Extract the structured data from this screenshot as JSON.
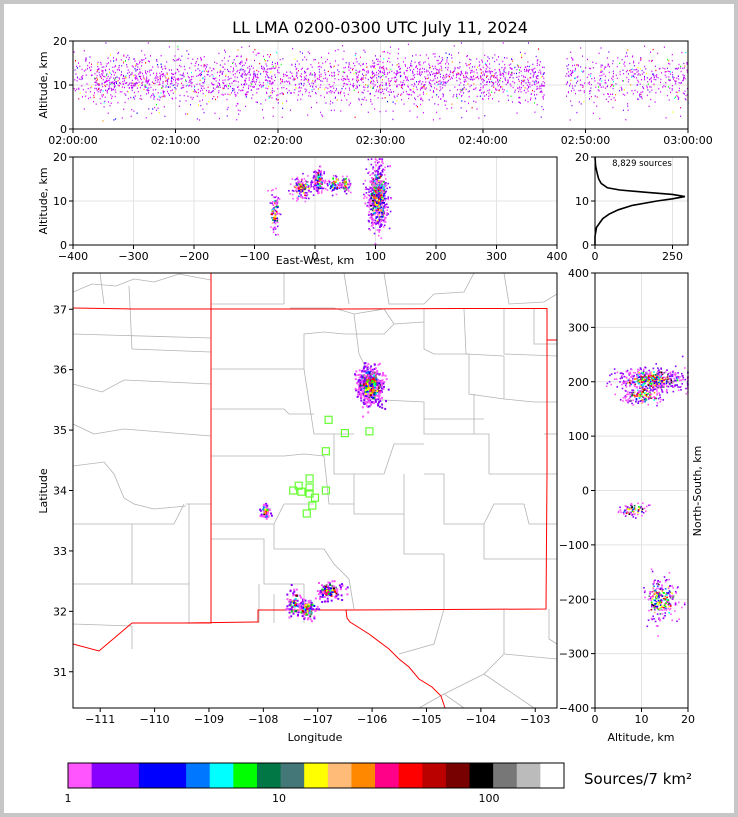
{
  "chart_data": [
    {
      "type": "scatter",
      "panel": "altitude-time",
      "title": "LL LMA 0200-0300 UTC July 11, 2024",
      "xlabel": "",
      "ylabel": "Altitude, km",
      "xticks": [
        "02:00:00",
        "02:10:00",
        "02:20:00",
        "02:30:00",
        "02:40:00",
        "02:50:00",
        "03:00:00"
      ],
      "xlim_minutes": [
        0,
        60
      ],
      "ylim": [
        0,
        20
      ],
      "yticks": [
        0,
        10,
        20
      ],
      "grid": true,
      "activity_segments_minutes": [
        [
          0,
          2,
          0.5
        ],
        [
          2,
          12,
          1.0
        ],
        [
          12,
          20,
          0.9
        ],
        [
          20,
          28,
          0.7
        ],
        [
          28,
          36,
          1.0
        ],
        [
          36,
          46,
          0.9
        ],
        [
          48,
          60,
          0.6
        ]
      ]
    },
    {
      "type": "scatter",
      "panel": "altitude-east-west",
      "xlabel": "East-West, km",
      "ylabel": "Altitude, km",
      "xlim": [
        -400,
        400
      ],
      "xticks": [
        -400,
        -300,
        -200,
        -100,
        0,
        100,
        200,
        300,
        400
      ],
      "ylim": [
        0,
        20
      ],
      "yticks": [
        0,
        10,
        20
      ],
      "grid": true,
      "clusters": [
        {
          "x": -68,
          "alt": 7.5,
          "sx": 4,
          "salt": 2.0,
          "n": 100
        },
        {
          "x": -22,
          "alt": 13.0,
          "sx": 8,
          "salt": 1.3,
          "n": 150
        },
        {
          "x": 5,
          "alt": 14.8,
          "sx": 5,
          "salt": 1.3,
          "n": 120
        },
        {
          "x": 30,
          "alt": 14.0,
          "sx": 6,
          "salt": 1.0,
          "n": 70
        },
        {
          "x": 50,
          "alt": 14.0,
          "sx": 4,
          "salt": 1.0,
          "n": 60
        },
        {
          "x": 103,
          "alt": 11.0,
          "sx": 8,
          "salt": 3.5,
          "n": 700
        }
      ]
    },
    {
      "type": "line",
      "panel": "altitude-histogram",
      "annotation": "8,829 sources",
      "xlim": [
        0,
        300
      ],
      "xticks": [
        0,
        250
      ],
      "ylim": [
        0,
        20
      ],
      "yticks": [
        0,
        10,
        20
      ],
      "alt": [
        0,
        2,
        4,
        5,
        6,
        7,
        8,
        9,
        10,
        10.5,
        11,
        11.5,
        12,
        12.5,
        13,
        14,
        15,
        16,
        17,
        18,
        20
      ],
      "count": [
        0,
        0,
        5,
        15,
        25,
        45,
        75,
        120,
        200,
        250,
        290,
        250,
        160,
        80,
        40,
        20,
        12,
        8,
        5,
        2,
        0
      ]
    },
    {
      "type": "scatter",
      "panel": "plan-view",
      "xlabel": "Longitude",
      "ylabel": "Latitude",
      "xlim": [
        -111.5,
        -102.6
      ],
      "xticks": [
        -111,
        -110,
        -109,
        -108,
        -107,
        -106,
        -105,
        -104,
        -103
      ],
      "ylim": [
        30.4,
        37.6
      ],
      "yticks": [
        31,
        32,
        33,
        34,
        35,
        36,
        37
      ],
      "grid": false,
      "clusters": [
        {
          "lon": -106.05,
          "lat": 35.75,
          "slon": 0.12,
          "slat": 0.15,
          "n": 500
        },
        {
          "lon": -107.97,
          "lat": 33.67,
          "slon": 0.04,
          "slat": 0.06,
          "n": 60
        },
        {
          "lon": -107.2,
          "lat": 32.05,
          "slon": 0.08,
          "slat": 0.1,
          "n": 100
        },
        {
          "lon": -107.45,
          "lat": 32.15,
          "slon": 0.06,
          "slat": 0.1,
          "n": 70
        },
        {
          "lon": -106.8,
          "lat": 32.35,
          "slon": 0.12,
          "slat": 0.07,
          "n": 120
        }
      ],
      "stations": [
        {
          "lon": -106.8,
          "lat": 35.17
        },
        {
          "lon": -106.5,
          "lat": 34.95
        },
        {
          "lon": -106.05,
          "lat": 34.98
        },
        {
          "lon": -106.85,
          "lat": 34.65
        },
        {
          "lon": -107.15,
          "lat": 34.2
        },
        {
          "lon": -107.15,
          "lat": 34.05
        },
        {
          "lon": -107.35,
          "lat": 34.08
        },
        {
          "lon": -107.45,
          "lat": 34.0
        },
        {
          "lon": -107.3,
          "lat": 33.98
        },
        {
          "lon": -107.15,
          "lat": 33.95
        },
        {
          "lon": -107.05,
          "lat": 33.88
        },
        {
          "lon": -106.85,
          "lat": 34.0
        },
        {
          "lon": -107.1,
          "lat": 33.75
        },
        {
          "lon": -107.2,
          "lat": 33.62
        }
      ]
    },
    {
      "type": "scatter",
      "panel": "north-south-altitude",
      "xlabel": "Altitude, km",
      "ylabel": "North-South, km",
      "xlim": [
        0,
        20
      ],
      "xticks": [
        0,
        10,
        20
      ],
      "ylim": [
        -400,
        400
      ],
      "yticks": [
        -400,
        -300,
        -200,
        -100,
        0,
        100,
        200,
        300,
        400
      ],
      "grid": true,
      "clusters": [
        {
          "alt": 12,
          "y": 205,
          "salt": 3.5,
          "sy": 10,
          "n": 500
        },
        {
          "alt": 10,
          "y": 175,
          "salt": 2.0,
          "sy": 8,
          "n": 150
        },
        {
          "alt": 8,
          "y": -35,
          "salt": 1.5,
          "sy": 6,
          "n": 80
        },
        {
          "alt": 14,
          "y": -200,
          "salt": 1.8,
          "sy": 20,
          "n": 250
        }
      ]
    }
  ],
  "colorbar": {
    "label": "Sources/7 km²",
    "tick_labels": [
      "1",
      "10",
      "100"
    ],
    "colors": [
      "#ff55ff",
      "#8800ff",
      "#8800ff",
      "#0000ff",
      "#0000ff",
      "#0077ff",
      "#00ffff",
      "#00ff00",
      "#007744",
      "#447777",
      "#ffff00",
      "#ffbb77",
      "#ff8800",
      "#ff0088",
      "#ff0000",
      "#bb0000",
      "#770000",
      "#000000",
      "#777777",
      "#bbbbbb",
      "#ffffff"
    ]
  }
}
